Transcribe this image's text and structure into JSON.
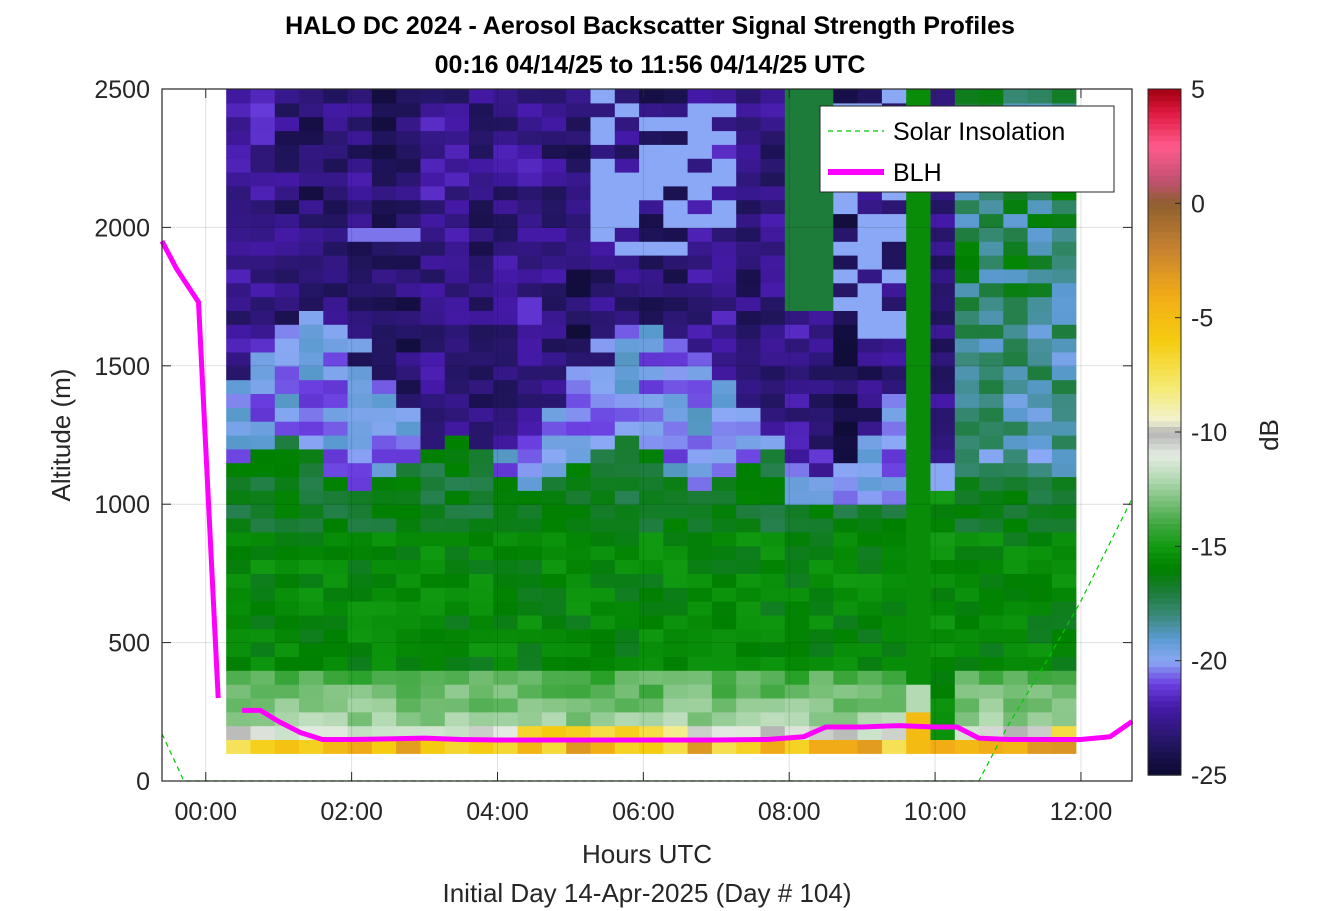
{
  "chart_data": {
    "type": "heatmap",
    "title": "HALO DC 2024 - Aerosol Backscatter Signal Strength Profiles",
    "subtitle": "00:16 04/14/25 to 11:56 04/14/25  UTC",
    "xlabel": "Hours UTC",
    "xlabel2": "Initial Day 14-Apr-2025 (Day # 104)",
    "ylabel": "Altitude (m)",
    "colorbar_label": "dB",
    "xlim": [
      -0.6,
      12.7
    ],
    "ylim": [
      0,
      2500
    ],
    "clim": [
      -25,
      5
    ],
    "x_ticks": [
      0,
      2,
      4,
      6,
      8,
      10,
      12
    ],
    "x_tick_labels": [
      "00:00",
      "02:00",
      "04:00",
      "06:00",
      "08:00",
      "10:00",
      "12:00"
    ],
    "y_ticks": [
      0,
      500,
      1000,
      1500,
      2000,
      2500
    ],
    "y_tick_labels": [
      "0",
      "500",
      "1000",
      "1500",
      "2000",
      "2500"
    ],
    "colorbar_ticks": [
      5,
      0,
      -5,
      -10,
      -15,
      -20,
      -25
    ],
    "colorbar_tick_labels": [
      "5",
      "0",
      "-5",
      "-10",
      "-15",
      "-20",
      "-25"
    ],
    "grid": true,
    "legend_position": "top-right",
    "heatmap_extent": {
      "x_start": 0.28,
      "x_end": 11.93,
      "y_start": 100,
      "y_end": 2500,
      "x_step": 0.333,
      "y_step": 50
    },
    "series": [
      {
        "name": "Solar Insolation",
        "style": "dashed",
        "color": "#00c800",
        "x": [
          -0.6,
          -0.3,
          10.6,
          11.0,
          11.5,
          12.0,
          12.7
        ],
        "y": [
          170,
          0,
          0,
          200,
          420,
          650,
          1020
        ]
      },
      {
        "name": "BLH",
        "style": "solid",
        "color": "#ff00ff",
        "x": [
          -0.6,
          -0.4,
          -0.1,
          0.17,
          null,
          0.5,
          0.75,
          1.0,
          1.3,
          1.6,
          2.0,
          2.5,
          3.0,
          3.5,
          4.0,
          5.0,
          6.0,
          7.0,
          7.7,
          8.2,
          8.5,
          9.0,
          9.5,
          10.0,
          10.3,
          10.6,
          11.0,
          11.5,
          12.0,
          12.4,
          12.7
        ],
        "y": [
          1950,
          1850,
          1730,
          300,
          null,
          255,
          255,
          215,
          175,
          150,
          150,
          152,
          155,
          150,
          148,
          148,
          148,
          148,
          150,
          160,
          195,
          195,
          200,
          195,
          195,
          155,
          150,
          150,
          150,
          160,
          215
        ]
      }
    ],
    "colormap": [
      {
        "v": -25,
        "c": "#0b0a2e"
      },
      {
        "v": -23.5,
        "c": "#251666"
      },
      {
        "v": -22,
        "c": "#4519a8"
      },
      {
        "v": -21,
        "c": "#6b3fe0"
      },
      {
        "v": -20,
        "c": "#8aa8f5"
      },
      {
        "v": -19,
        "c": "#5a9ad0"
      },
      {
        "v": -18,
        "c": "#3a8a7a"
      },
      {
        "v": -17,
        "c": "#1d7c3a"
      },
      {
        "v": -16,
        "c": "#008000"
      },
      {
        "v": -15,
        "c": "#119a11"
      },
      {
        "v": -14,
        "c": "#40a840"
      },
      {
        "v": -13,
        "c": "#7bc07b"
      },
      {
        "v": -12,
        "c": "#b4dab4"
      },
      {
        "v": -11,
        "c": "#e4ece2"
      },
      {
        "v": -10,
        "c": "#b4b4b4"
      },
      {
        "v": -9.5,
        "c": "#f2f2d0"
      },
      {
        "v": -8,
        "c": "#f5ea70"
      },
      {
        "v": -6,
        "c": "#f5cc10"
      },
      {
        "v": -4,
        "c": "#f2ac16"
      },
      {
        "v": -2,
        "c": "#c88230"
      },
      {
        "v": 0,
        "c": "#8f6030"
      },
      {
        "v": 1,
        "c": "#c05070"
      },
      {
        "v": 2.5,
        "c": "#ff5a8c"
      },
      {
        "v": 4,
        "c": "#e01840"
      },
      {
        "v": 5,
        "c": "#a00010"
      }
    ]
  }
}
